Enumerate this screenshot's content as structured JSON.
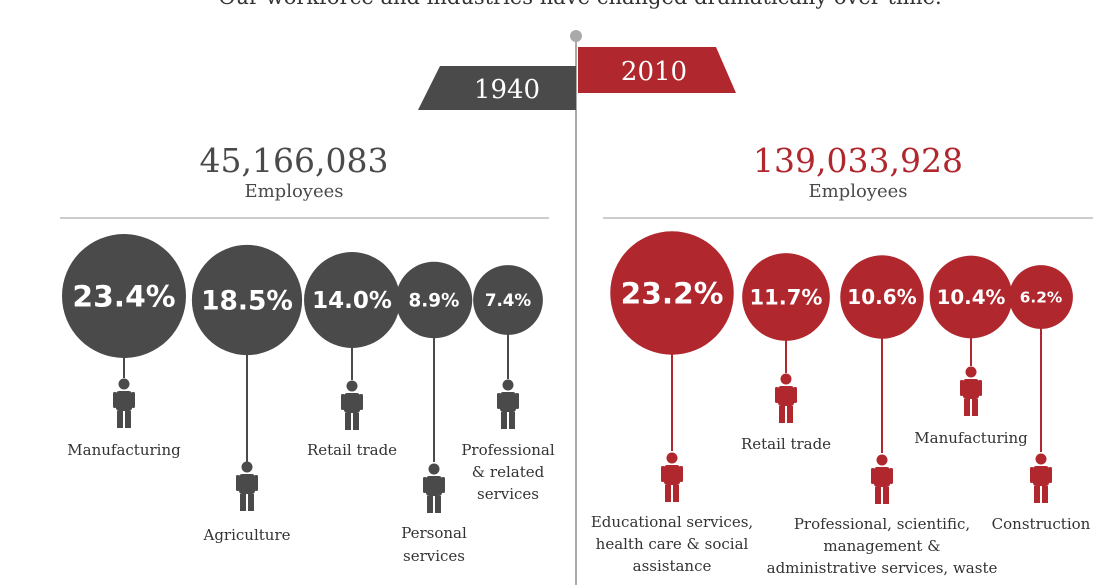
{
  "subtitle": "Our workforce and industries have changed dramatically over time.",
  "colors": {
    "left": "#4a4a4a",
    "right": "#b0272d",
    "axis": "#aaaaaa",
    "text": "#333333"
  },
  "chart_data": [
    {
      "type": "bubble",
      "title": "1940",
      "total": "45,166,083",
      "total_label": "Employees",
      "unit": "percent of employees",
      "categories": [
        "Manufacturing",
        "Agriculture",
        "Retail trade",
        "Personal services",
        "Professional & related services"
      ],
      "values": [
        23.4,
        18.5,
        14.0,
        8.9,
        7.4
      ],
      "labels": [
        "23.4%",
        "18.5%",
        "14.0%",
        "8.9%",
        "7.4%"
      ],
      "icons": [
        "factory-worker-icon",
        "farmer-icon",
        "retail-clerk-icon",
        "waiter-icon",
        "businessman-icon"
      ]
    },
    {
      "type": "bubble",
      "title": "2010",
      "total": "139,033,928",
      "total_label": "Employees",
      "unit": "percent of employees",
      "categories": [
        "Educational services, health care & social assistance",
        "Retail trade",
        "Professional, scientific, management & administrative services, waste",
        "Manufacturing",
        "Construction"
      ],
      "values": [
        23.2,
        11.7,
        10.6,
        10.4,
        6.2
      ],
      "labels": [
        "23.2%",
        "11.7%",
        "10.6%",
        "10.4%",
        "6.2%"
      ],
      "icons": [
        "nurse-icon",
        "retail-clerk-icon",
        "scientist-icon",
        "factory-worker-icon",
        "construction-worker-icon"
      ]
    }
  ]
}
